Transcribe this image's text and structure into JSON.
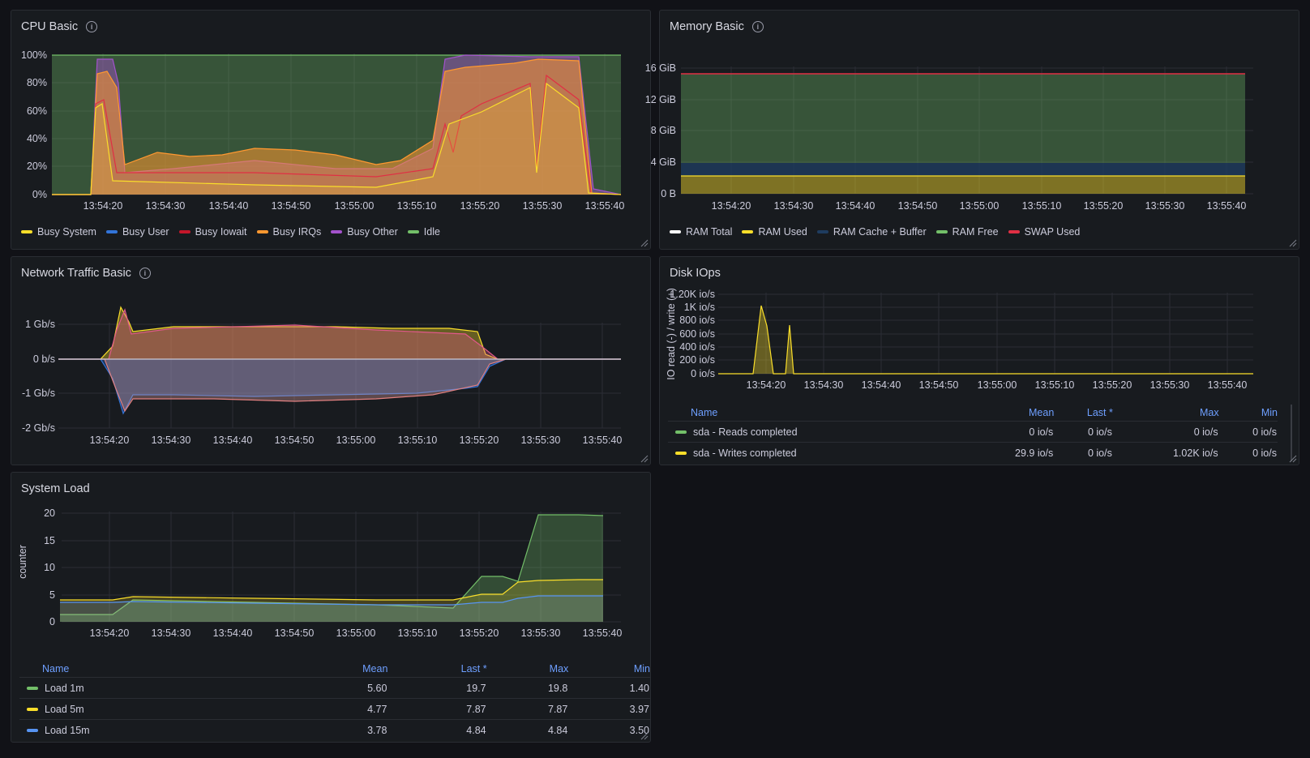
{
  "colors": {
    "yellow": "#fade2a",
    "blue": "#3274d9",
    "red": "#c4162a",
    "orange": "#ff9830",
    "purple": "#a352cc",
    "green": "#73bf69",
    "white": "#ffffff",
    "navy": "#1f3c5f",
    "darkred": "#e02f44"
  },
  "cpu": {
    "title": "CPU Basic",
    "icon": "info-icon",
    "yticks": [
      "100%",
      "80%",
      "60%",
      "40%",
      "20%",
      "0%"
    ],
    "xticks": [
      "13:54:20",
      "13:54:30",
      "13:54:40",
      "13:54:50",
      "13:55:00",
      "13:55:10",
      "13:55:20",
      "13:55:30",
      "13:55:40"
    ],
    "legend": [
      {
        "label": "Busy System",
        "color": "#fade2a"
      },
      {
        "label": "Busy User",
        "color": "#3274d9"
      },
      {
        "label": "Busy Iowait",
        "color": "#c4162a"
      },
      {
        "label": "Busy IRQs",
        "color": "#ff9830"
      },
      {
        "label": "Busy Other",
        "color": "#a352cc"
      },
      {
        "label": "Idle",
        "color": "#73bf69"
      }
    ]
  },
  "mem": {
    "title": "Memory Basic",
    "icon": "info-icon",
    "yticks": [
      "16 GiB",
      "12 GiB",
      "8 GiB",
      "4 GiB",
      "0 B"
    ],
    "xticks": [
      "13:54:20",
      "13:54:30",
      "13:54:40",
      "13:54:50",
      "13:55:00",
      "13:55:10",
      "13:55:20",
      "13:55:30",
      "13:55:40"
    ],
    "legend": [
      {
        "label": "RAM Total",
        "color": "#ffffff"
      },
      {
        "label": "RAM Used",
        "color": "#fade2a"
      },
      {
        "label": "RAM Cache + Buffer",
        "color": "#1f3c5f"
      },
      {
        "label": "RAM Free",
        "color": "#73bf69"
      },
      {
        "label": "SWAP Used",
        "color": "#e02f44"
      }
    ]
  },
  "net": {
    "title": "Network Traffic Basic",
    "icon": "info-icon",
    "yticks": [
      "1 Gb/s",
      "0 b/s",
      "-1 Gb/s",
      "-2 Gb/s"
    ],
    "xticks": [
      "13:54:20",
      "13:54:30",
      "13:54:40",
      "13:54:50",
      "13:55:00",
      "13:55:10",
      "13:55:20",
      "13:55:30",
      "13:55:40"
    ]
  },
  "disk": {
    "title": "Disk IOps",
    "ylabel": "IO read (-) / write (+)",
    "yticks": [
      "1.20K io/s",
      "1K io/s",
      "800 io/s",
      "600 io/s",
      "400 io/s",
      "200 io/s",
      "0 io/s"
    ],
    "xticks": [
      "13:54:20",
      "13:54:30",
      "13:54:40",
      "13:54:50",
      "13:55:00",
      "13:55:10",
      "13:55:20",
      "13:55:30",
      "13:55:40"
    ],
    "headers": [
      "Name",
      "Mean",
      "Last *",
      "Max",
      "Min"
    ],
    "rows": [
      {
        "name": "sda - Reads completed",
        "color": "#73bf69",
        "mean": "0 io/s",
        "last": "0 io/s",
        "max": "0 io/s",
        "min": "0 io/s"
      },
      {
        "name": "sda - Writes completed",
        "color": "#fade2a",
        "mean": "29.9 io/s",
        "last": "0 io/s",
        "max": "1.02K io/s",
        "min": "0 io/s"
      }
    ]
  },
  "load": {
    "title": "System Load",
    "ylabel": "counter",
    "yticks": [
      "20",
      "15",
      "10",
      "5",
      "0"
    ],
    "xticks": [
      "13:54:20",
      "13:54:30",
      "13:54:40",
      "13:54:50",
      "13:55:00",
      "13:55:10",
      "13:55:20",
      "13:55:30",
      "13:55:40"
    ],
    "headers": [
      "Name",
      "Mean",
      "Last *",
      "Max",
      "Min"
    ],
    "rows": [
      {
        "name": "Load 1m",
        "color": "#73bf69",
        "mean": "5.60",
        "last": "19.7",
        "max": "19.8",
        "min": "1.40"
      },
      {
        "name": "Load 5m",
        "color": "#fade2a",
        "mean": "4.77",
        "last": "7.87",
        "max": "7.87",
        "min": "3.97"
      },
      {
        "name": "Load 15m",
        "color": "#5794f2",
        "mean": "3.78",
        "last": "4.84",
        "max": "4.84",
        "min": "3.50"
      }
    ]
  }
}
